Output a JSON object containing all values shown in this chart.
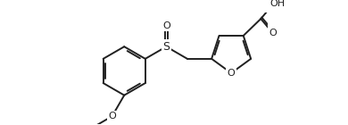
{
  "bg": "#ffffff",
  "lc": "#202020",
  "lw": 1.4,
  "lw2": 1.4,
  "fs": 7.0,
  "figsize": [
    3.9,
    1.4
  ],
  "dpi": 100,
  "xlim": [
    0.0,
    7.8
  ],
  "ylim": [
    -1.8,
    2.2
  ]
}
